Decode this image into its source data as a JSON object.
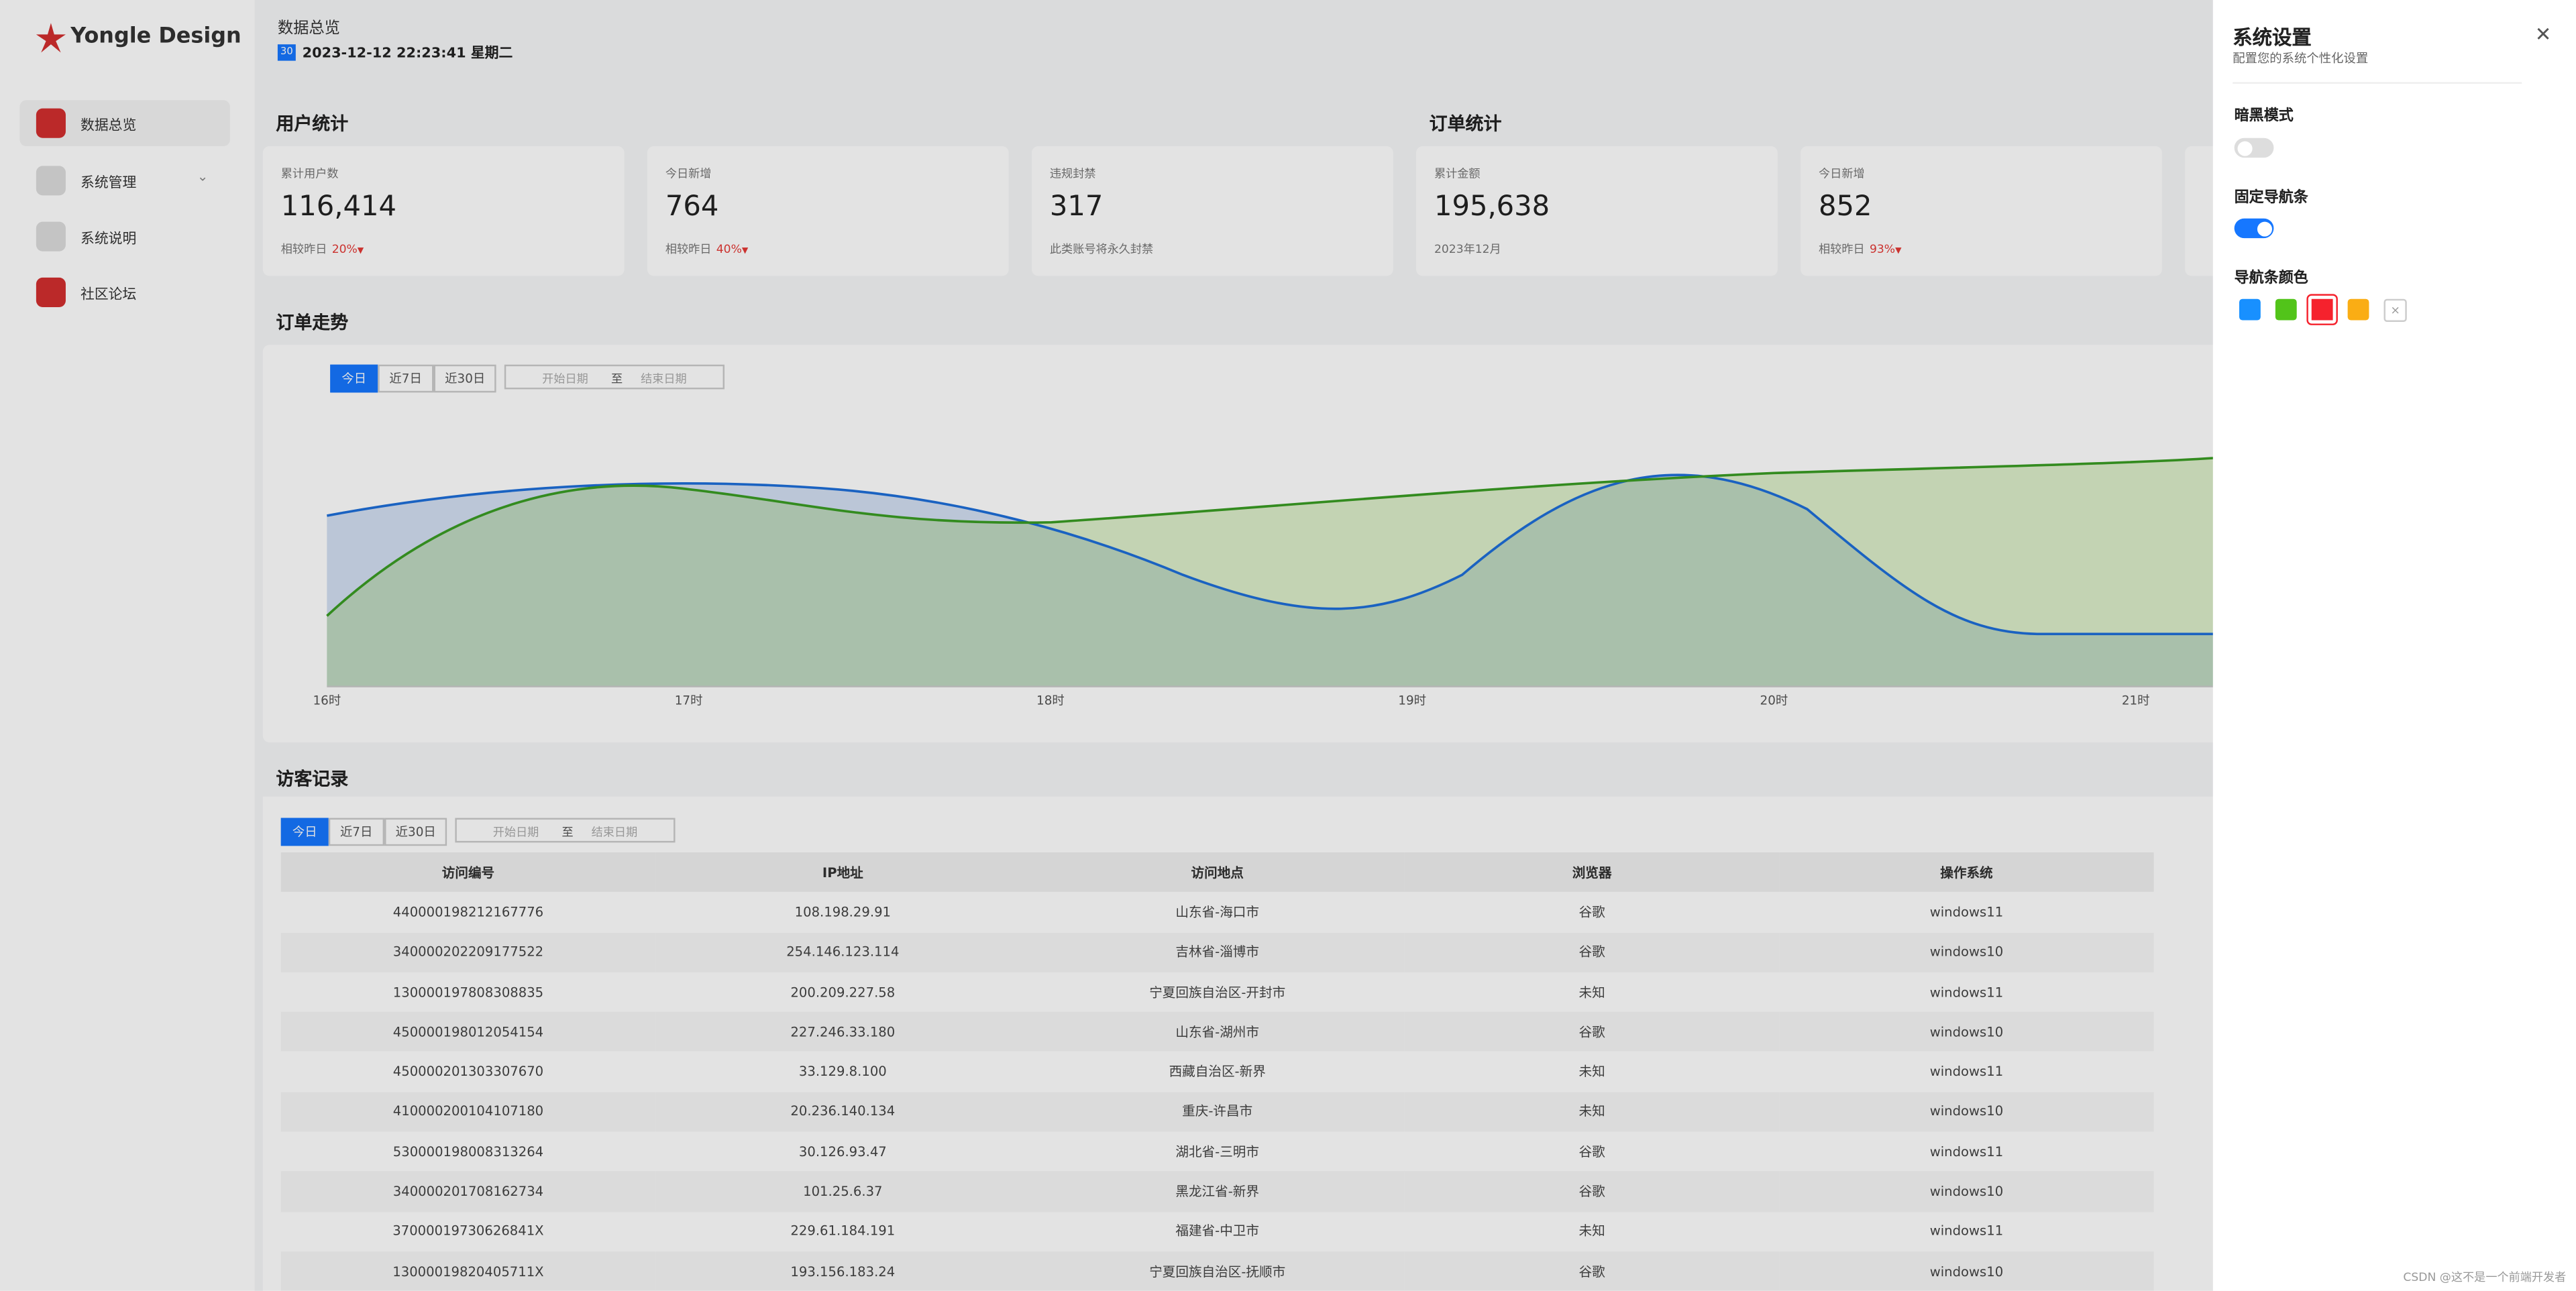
{
  "sidebar": {
    "logo": "Yongle Design",
    "menu": [
      "数据总览",
      "系统管理",
      "系统说明",
      "社区论坛"
    ]
  },
  "header": {
    "title": "数据总览",
    "date_icon": "30",
    "datetime": "2023-12-12 22:23:41 星期二"
  },
  "sections": {
    "user": "用户统计",
    "order": "订单统计",
    "trend": "订单走势",
    "visitors": "访客记录"
  },
  "cards": [
    {
      "label": "累计用户数",
      "value": "116,414",
      "note": "相较昨日",
      "change": "20%"
    },
    {
      "label": "今日新增",
      "value": "764",
      "note": "相较昨日",
      "change": "40%"
    },
    {
      "label": "违规封禁",
      "value": "317",
      "note": "此类账号将永久封禁"
    },
    {
      "label": "累计金额",
      "value": "195,638",
      "note": "2023年12月"
    },
    {
      "label": "今日新增",
      "value": "852",
      "note": "相较昨日",
      "change": "93%"
    }
  ],
  "filters": {
    "ranges": [
      "今日",
      "近7日",
      "近30日"
    ],
    "start": "开始日期",
    "separator": "至",
    "end": "结束日期"
  },
  "trend_chart": {
    "x_labels": [
      "16时",
      "17时",
      "18时",
      "19时",
      "20时",
      "21时"
    ]
  },
  "table": {
    "columns": [
      "访问编号",
      "IP地址",
      "访问地点",
      "浏览器",
      "操作系统"
    ],
    "rows": [
      [
        "440000198212167776",
        "108.198.29.91",
        "山东省-海口市",
        "谷歌",
        "windows11"
      ],
      [
        "340000202209177522",
        "254.146.123.114",
        "吉林省-淄博市",
        "谷歌",
        "windows10"
      ],
      [
        "130000197808308835",
        "200.209.227.58",
        "宁夏回族自治区-开封市",
        "未知",
        "windows11"
      ],
      [
        "450000198012054154",
        "227.246.33.180",
        "山东省-湖州市",
        "谷歌",
        "windows10"
      ],
      [
        "450000201303307670",
        "33.129.8.100",
        "西藏自治区-新界",
        "未知",
        "windows11"
      ],
      [
        "410000200104107180",
        "20.236.140.134",
        "重庆-许昌市",
        "未知",
        "windows10"
      ],
      [
        "530000198008313264",
        "30.126.93.47",
        "湖北省-三明市",
        "谷歌",
        "windows11"
      ],
      [
        "340000201708162734",
        "101.25.6.37",
        "黑龙江省-新界",
        "谷歌",
        "windows10"
      ],
      [
        "37000019730626841X",
        "229.61.184.191",
        "福建省-中卫市",
        "未知",
        "windows11"
      ],
      [
        "13000019820405711X",
        "193.156.183.24",
        "宁夏回族自治区-抚顺市",
        "谷歌",
        "windows10"
      ]
    ]
  },
  "drawer": {
    "title": "系统设置",
    "subtitle": "配置您的系统个性化设置",
    "dark_mode": "暗黑模式",
    "fixed_nav": "固定导航条",
    "nav_color": "导航条颜色"
  },
  "watermark": "CSDN @这不是一个前端开发者"
}
